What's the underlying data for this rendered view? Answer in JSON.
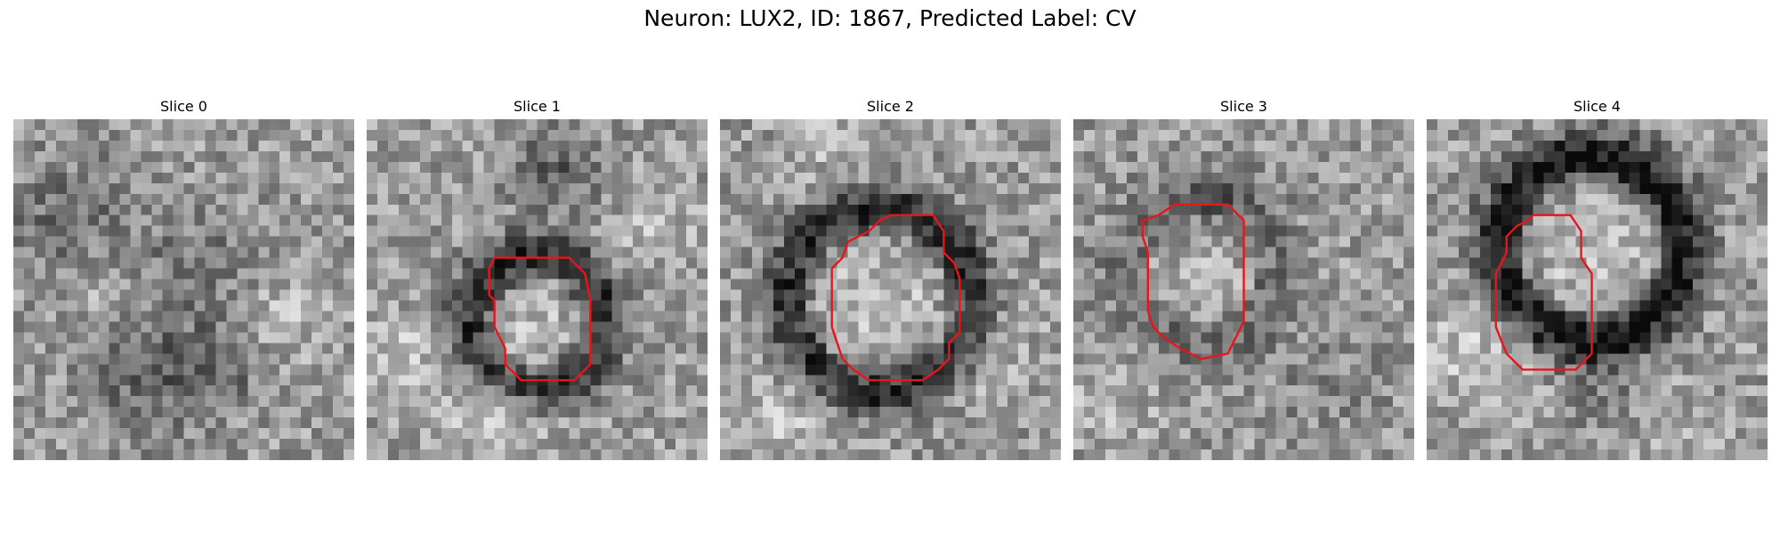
{
  "figure": {
    "suptitle": "Neuron: LUX2, ID: 1867, Predicted Label: CV",
    "colormap": "gray",
    "contour_color": "#e8151b"
  },
  "slices": [
    {
      "title": "Slice 0",
      "ring": "none",
      "contour": []
    },
    {
      "title": "Slice 1",
      "ring": "small dark ring, center",
      "contour": [
        [
          12,
          13
        ],
        [
          19,
          13
        ],
        [
          20.5,
          14.5
        ],
        [
          21,
          17
        ],
        [
          21,
          23
        ],
        [
          19.5,
          24.5
        ],
        [
          14.5,
          24.5
        ],
        [
          13,
          23
        ],
        [
          13,
          21.5
        ],
        [
          12.5,
          20.5
        ],
        [
          12,
          19.5
        ],
        [
          12,
          17
        ],
        [
          11.5,
          16.5
        ],
        [
          11.5,
          14
        ]
      ]
    },
    {
      "title": "Slice 2",
      "ring": "large dark ring, center",
      "contour": [
        [
          16,
          9
        ],
        [
          20,
          9
        ],
        [
          21,
          10.5
        ],
        [
          21,
          12.5
        ],
        [
          22,
          13.5
        ],
        [
          22.5,
          15
        ],
        [
          22.5,
          20
        ],
        [
          21.5,
          21
        ],
        [
          21.5,
          22.5
        ],
        [
          20.5,
          23.5
        ],
        [
          19,
          24.5
        ],
        [
          14,
          24.5
        ],
        [
          12.5,
          23.5
        ],
        [
          11.5,
          22.5
        ],
        [
          10.5,
          19.5
        ],
        [
          10.5,
          14
        ],
        [
          11.5,
          13
        ],
        [
          12,
          11.5
        ],
        [
          14,
          10.5
        ],
        [
          15,
          9.5
        ]
      ]
    },
    {
      "title": "Slice 3",
      "ring": "faint",
      "contour": [
        [
          9.5,
          8
        ],
        [
          14.5,
          8
        ],
        [
          16,
          9.5
        ],
        [
          16,
          19
        ],
        [
          15,
          21
        ],
        [
          14.5,
          22
        ],
        [
          12,
          22.5
        ],
        [
          10,
          21.5
        ],
        [
          8.5,
          20.5
        ],
        [
          7.5,
          19.5
        ],
        [
          7,
          18
        ],
        [
          7,
          12.5
        ],
        [
          6.5,
          11
        ],
        [
          6.5,
          9.5
        ],
        [
          8,
          9
        ]
      ]
    },
    {
      "title": "Slice 4",
      "ring": "large dark ring, upper",
      "contour": [
        [
          10,
          9
        ],
        [
          13.5,
          9
        ],
        [
          14.5,
          10.5
        ],
        [
          14.5,
          13
        ],
        [
          15.5,
          14.5
        ],
        [
          15.5,
          22
        ],
        [
          14,
          23.5
        ],
        [
          9,
          23.5
        ],
        [
          7.5,
          22
        ],
        [
          6.5,
          19.5
        ],
        [
          6.5,
          14.5
        ],
        [
          7.5,
          12.5
        ],
        [
          7.5,
          11
        ],
        [
          8.5,
          10
        ],
        [
          9.5,
          9.5
        ]
      ]
    }
  ]
}
